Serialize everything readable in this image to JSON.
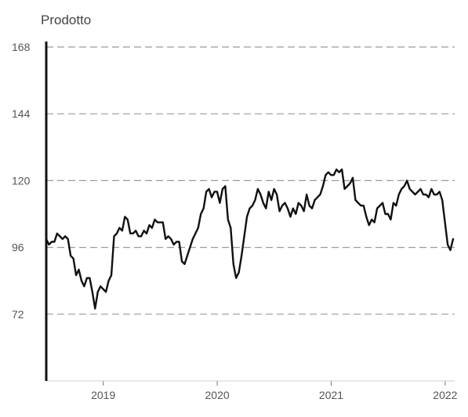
{
  "chart_data": {
    "type": "line",
    "title": "Prodotto",
    "xlabel": "",
    "ylabel": "",
    "ylim": [
      48,
      168
    ],
    "yticks": [
      168,
      144,
      120,
      96,
      72
    ],
    "xticks": [
      "2019",
      "2020",
      "2021",
      "2022"
    ],
    "grid": true,
    "x_start": "2018-07",
    "x_end": "2022-02",
    "series": [
      {
        "values": [
          99,
          97,
          98,
          98,
          101,
          100,
          99,
          100,
          99,
          93,
          92,
          86,
          88,
          84,
          82,
          85,
          85,
          80,
          74,
          80,
          82,
          81,
          80,
          84,
          86,
          100,
          101,
          103,
          102,
          107,
          106,
          101,
          101,
          102,
          100,
          100,
          102,
          101,
          104,
          103,
          106,
          105,
          105,
          105,
          99,
          100,
          99,
          97,
          98,
          98,
          91,
          90,
          93,
          96,
          99,
          101,
          103,
          108,
          110,
          116,
          117,
          114,
          116,
          116,
          112,
          117,
          118,
          106,
          103,
          90,
          85,
          87,
          93,
          100,
          107,
          110,
          111,
          113,
          117,
          115,
          112,
          110,
          116,
          113,
          117,
          115,
          109,
          111,
          112,
          110,
          107,
          110,
          108,
          112,
          111,
          109,
          115,
          111,
          110,
          113,
          114,
          115,
          118,
          122,
          123,
          122,
          122,
          124,
          123,
          124,
          117,
          118,
          119,
          121,
          113,
          112,
          111,
          111,
          107,
          104,
          106,
          105,
          110,
          111,
          112,
          108,
          108,
          106,
          112,
          111,
          115,
          117,
          118,
          120,
          117,
          116,
          115,
          116,
          117,
          115,
          115,
          114,
          117,
          115,
          115,
          116,
          113,
          105,
          97,
          95,
          99
        ]
      }
    ]
  }
}
